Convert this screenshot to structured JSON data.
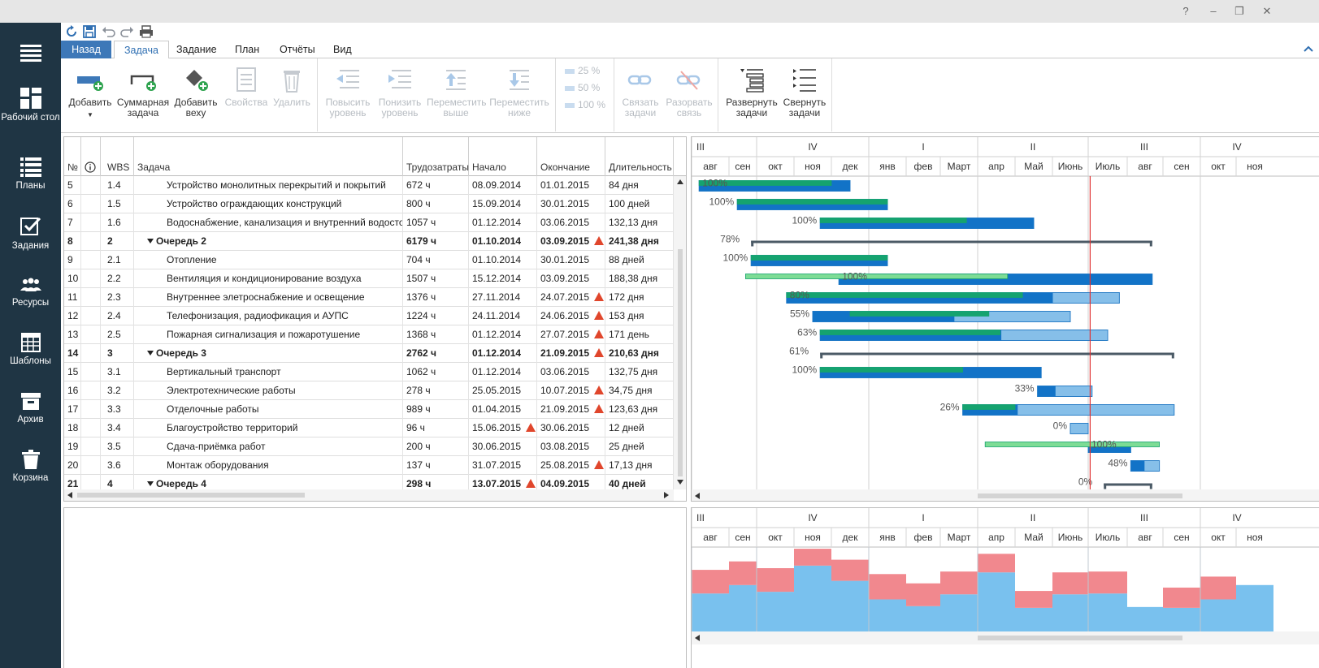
{
  "window": {
    "help": "?",
    "minimize": "–",
    "restore": "❐",
    "close": "✕"
  },
  "sidebar": {
    "items": [
      {
        "id": "menu",
        "label": "",
        "icon": "hamburger-icon"
      },
      {
        "id": "desktop",
        "label": "Рабочий стол",
        "icon": "dashboard-icon"
      },
      {
        "id": "plans",
        "label": "Планы",
        "icon": "list-icon"
      },
      {
        "id": "tasks",
        "label": "Задания",
        "icon": "checkbox-icon"
      },
      {
        "id": "resources",
        "label": "Ресурсы",
        "icon": "people-icon"
      },
      {
        "id": "templates",
        "label": "Шаблоны",
        "icon": "table-icon"
      },
      {
        "id": "archive",
        "label": "Архив",
        "icon": "archive-icon"
      },
      {
        "id": "trash",
        "label": "Корзина",
        "icon": "trash-icon"
      }
    ]
  },
  "tabs": [
    "Назад",
    "Задача",
    "Задание",
    "План",
    "Отчёты",
    "Вид"
  ],
  "ribbon": {
    "add": "Добавить",
    "summary_task": "Суммарная задача",
    "add_milestone": "Добавить веху",
    "properties": "Свойства",
    "delete": "Удалить",
    "raise_level": "Повысить уровень",
    "lower_level": "Понизить уровень",
    "move_up": "Переместить выше",
    "move_down": "Переместить ниже",
    "pct_25": "25 %",
    "pct_50": "50 %",
    "pct_100": "100 %",
    "link_tasks": "Связать задачи",
    "unlink": "Разорвать связь",
    "expand_tasks": "Развернуть задачи",
    "collapse_tasks": "Свернуть задачи"
  },
  "grid": {
    "columns": {
      "num": "№",
      "info": "",
      "wbs": "WBS",
      "task": "Задача",
      "work": "Трудозатраты",
      "start": "Начало",
      "end": "Окончание",
      "duration": "Длительность"
    },
    "rows": [
      {
        "num": "5",
        "wbs": "1.4",
        "task": "Устройство монолитных перекрытий и покрытий",
        "work": "672 ч",
        "start": "08.09.2014",
        "end": "01.01.2015",
        "duration": "84 дня",
        "summary": false,
        "warn_start": false,
        "warn_end": false
      },
      {
        "num": "6",
        "wbs": "1.5",
        "task": "Устройство ограждающих конструкций",
        "work": "800 ч",
        "start": "15.09.2014",
        "end": "30.01.2015",
        "duration": "100 дней",
        "summary": false,
        "warn_start": false,
        "warn_end": false
      },
      {
        "num": "7",
        "wbs": "1.6",
        "task": "Водоснабжение, канализация и внутренний водосток",
        "work": "1057 ч",
        "start": "01.12.2014",
        "end": "03.06.2015",
        "duration": "132,13 дня",
        "summary": false,
        "warn_start": false,
        "warn_end": false
      },
      {
        "num": "8",
        "wbs": "2",
        "task": "Очередь 2",
        "work": "6179 ч",
        "start": "01.10.2014",
        "end": "03.09.2015",
        "duration": "241,38 дня",
        "summary": true,
        "warn_start": false,
        "warn_end": true
      },
      {
        "num": "9",
        "wbs": "2.1",
        "task": "Отопление",
        "work": "704 ч",
        "start": "01.10.2014",
        "end": "30.01.2015",
        "duration": "88 дней",
        "summary": false,
        "warn_start": false,
        "warn_end": false
      },
      {
        "num": "10",
        "wbs": "2.2",
        "task": "Вентиляция и кондиционирование воздуха",
        "work": "1507 ч",
        "start": "15.12.2014",
        "end": "03.09.2015",
        "duration": "188,38 дня",
        "summary": false,
        "warn_start": false,
        "warn_end": false
      },
      {
        "num": "11",
        "wbs": "2.3",
        "task": "Внутреннее элетроснабжение и освещение",
        "work": "1376 ч",
        "start": "27.11.2014",
        "end": "24.07.2015",
        "duration": "172 дня",
        "summary": false,
        "warn_start": false,
        "warn_end": true
      },
      {
        "num": "12",
        "wbs": "2.4",
        "task": "Телефонизация, радиофикация и АУПС",
        "work": "1224 ч",
        "start": "24.11.2014",
        "end": "24.06.2015",
        "duration": "153 дня",
        "summary": false,
        "warn_start": false,
        "warn_end": true
      },
      {
        "num": "13",
        "wbs": "2.5",
        "task": "Пожарная сигнализация и пожаротушение",
        "work": "1368 ч",
        "start": "01.12.2014",
        "end": "27.07.2015",
        "duration": "171 день",
        "summary": false,
        "warn_start": false,
        "warn_end": true
      },
      {
        "num": "14",
        "wbs": "3",
        "task": "Очередь 3",
        "work": "2762 ч",
        "start": "01.12.2014",
        "end": "21.09.2015",
        "duration": "210,63 дня",
        "summary": true,
        "warn_start": false,
        "warn_end": true
      },
      {
        "num": "15",
        "wbs": "3.1",
        "task": "Вертикальный транспорт",
        "work": "1062 ч",
        "start": "01.12.2014",
        "end": "03.06.2015",
        "duration": "132,75 дня",
        "summary": false,
        "warn_start": false,
        "warn_end": false
      },
      {
        "num": "16",
        "wbs": "3.2",
        "task": "Электротехнические работы",
        "work": "278 ч",
        "start": "25.05.2015",
        "end": "10.07.2015",
        "duration": "34,75 дня",
        "summary": false,
        "warn_start": false,
        "warn_end": true
      },
      {
        "num": "17",
        "wbs": "3.3",
        "task": "Отделочные работы",
        "work": "989 ч",
        "start": "01.04.2015",
        "end": "21.09.2015",
        "duration": "123,63 дня",
        "summary": false,
        "warn_start": false,
        "warn_end": true
      },
      {
        "num": "18",
        "wbs": "3.4",
        "task": "Благоустройство территорий",
        "work": "96 ч",
        "start": "15.06.2015",
        "end": "30.06.2015",
        "duration": "12 дней",
        "summary": false,
        "warn_start": true,
        "warn_end": false
      },
      {
        "num": "19",
        "wbs": "3.5",
        "task": "Сдача-приёмка работ",
        "work": "200 ч",
        "start": "30.06.2015",
        "end": "03.08.2015",
        "duration": "25 дней",
        "summary": false,
        "warn_start": false,
        "warn_end": false
      },
      {
        "num": "20",
        "wbs": "3.6",
        "task": "Монтаж оборудования",
        "work": "137 ч",
        "start": "31.07.2015",
        "end": "25.08.2015",
        "duration": "17,13 дня",
        "summary": false,
        "warn_start": false,
        "warn_end": true
      },
      {
        "num": "21",
        "wbs": "4",
        "task": "Очередь 4",
        "work": "298 ч",
        "start": "13.07.2015",
        "end": "04.09.2015",
        "duration": "40 дней",
        "summary": true,
        "warn_start": true,
        "warn_end": false
      }
    ]
  },
  "timeline": {
    "quarters": [
      "III",
      "IV",
      "I",
      "II",
      "III",
      "IV"
    ],
    "months": [
      "авг",
      "сен",
      "окт",
      "ноя",
      "дек",
      "янв",
      "фев",
      "Март",
      "апр",
      "Май",
      "Июнь",
      "Июль",
      "авг",
      "сен",
      "окт",
      "ноя"
    ],
    "today_month_index": 11.05
  },
  "gantt": {
    "bars": [
      {
        "row": 0,
        "start": 0.2,
        "end": 4.5,
        "progress": 1.0,
        "baseline_start": 0.2,
        "baseline_end": 4.0,
        "label": "100%",
        "label_inside": true
      },
      {
        "row": 1,
        "start": 1.3,
        "end": 5.5,
        "progress": 1.0,
        "baseline_start": 1.3,
        "baseline_end": 5.5,
        "label": "100%",
        "label_inside": false
      },
      {
        "row": 2,
        "start": 3.7,
        "end": 9.5,
        "progress": 1.0,
        "baseline_start": 3.7,
        "baseline_end": 7.7,
        "label": "100%",
        "label_inside": false
      },
      {
        "row": 3,
        "start": 1.8,
        "end": 12.7,
        "summary": true,
        "label": "78%"
      },
      {
        "row": 4,
        "start": 1.8,
        "end": 5.5,
        "progress": 1.0,
        "baseline_start": 1.8,
        "baseline_end": 5.5,
        "label": "100%",
        "label_inside": false
      },
      {
        "row": 5,
        "start": 4.2,
        "end": 12.7,
        "progress": 1.0,
        "baseline_start": 1.6,
        "baseline_end": 8.8,
        "label": "100%",
        "label_inside": true
      },
      {
        "row": 6,
        "start": 2.8,
        "end": 11.8,
        "progress": 0.8,
        "baseline_start": 2.8,
        "baseline_end": 9.2,
        "label": "80%",
        "label_inside": true
      },
      {
        "row": 7,
        "start": 3.5,
        "end": 10.5,
        "progress": 0.55,
        "baseline_start": 4.5,
        "baseline_end": 8.3,
        "label": "55%",
        "label_inside": false
      },
      {
        "row": 8,
        "start": 3.7,
        "end": 11.5,
        "progress": 0.63,
        "baseline_start": 3.7,
        "baseline_end": 8.6,
        "label": "63%",
        "label_inside": false
      },
      {
        "row": 9,
        "start": 3.7,
        "end": 13.3,
        "summary": true,
        "label": "61%"
      },
      {
        "row": 10,
        "start": 3.7,
        "end": 9.7,
        "progress": 1.0,
        "baseline_start": 3.7,
        "baseline_end": 7.6,
        "label": "100%",
        "label_inside": false
      },
      {
        "row": 11,
        "start": 9.6,
        "end": 11.1,
        "progress": 0.33,
        "label": "33%",
        "label_inside": false
      },
      {
        "row": 12,
        "start": 7.6,
        "end": 13.3,
        "progress": 0.26,
        "baseline_start": 7.6,
        "baseline_end": 9.0,
        "label": "26%",
        "label_inside": false
      },
      {
        "row": 13,
        "start": 10.5,
        "end": 11.0,
        "progress": 0.0,
        "label": "0%",
        "label_inside": false
      },
      {
        "row": 14,
        "start": 11.0,
        "end": 12.1,
        "progress": 1.0,
        "baseline_start": 8.2,
        "baseline_end": 12.9,
        "label": "100%",
        "label_inside": true
      },
      {
        "row": 15,
        "start": 12.1,
        "end": 12.9,
        "progress": 0.48,
        "label": "48%",
        "label_inside": false
      },
      {
        "row": 16,
        "start": 11.4,
        "end": 12.7,
        "summary": true,
        "label": "0%"
      }
    ]
  },
  "resource_load": {
    "base": [
      0.45,
      0.55,
      0.47,
      0.78,
      0.6,
      0.38,
      0.3,
      0.44,
      0.7,
      0.28,
      0.44,
      0.45,
      0.29,
      0.28,
      0.38,
      0.55
    ],
    "overload": [
      0.28,
      0.28,
      0.28,
      0.2,
      0.25,
      0.3,
      0.27,
      0.27,
      0.22,
      0.2,
      0.26,
      0.26,
      0.0,
      0.24,
      0.27,
      0.0
    ]
  },
  "colors": {
    "sidebar": "#1f3544",
    "accent": "#3d78b8",
    "bar_blue": "#1273c7",
    "bar_light": "#86bfe9",
    "bar_green": "#15a36f",
    "baseline_green": "#7ddc95",
    "today_line": "#e03333",
    "load_blue": "#79c1ee",
    "load_red": "#f1888e",
    "warn": "#e0462c"
  }
}
